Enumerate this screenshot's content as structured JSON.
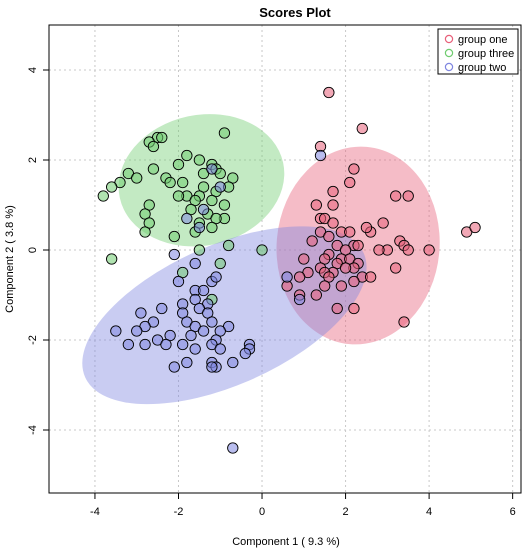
{
  "chart_data": {
    "type": "scatter",
    "title": "Scores Plot",
    "xlabel": "Component 1 ( 9.3 %)",
    "ylabel": "Component 2 ( 3.8 %)",
    "xlim": [
      -5.1,
      6.2
    ],
    "ylim": [
      -5.4,
      5.0
    ],
    "xticks": [
      -4,
      -2,
      0,
      2,
      4,
      6
    ],
    "yticks": [
      -4,
      -2,
      0,
      2,
      4
    ],
    "grid": true,
    "legend": {
      "position": "top-right"
    },
    "series": [
      {
        "name": "group one",
        "color": "#e8607a",
        "ellipse": {
          "cx": 2.3,
          "cy": 0.1,
          "rx": 1.95,
          "ry": 2.2,
          "angle": -5
        },
        "points": [
          [
            1.6,
            3.5
          ],
          [
            2.4,
            2.7
          ],
          [
            1.4,
            2.3
          ],
          [
            2.2,
            1.8
          ],
          [
            1.7,
            1.3
          ],
          [
            2.1,
            1.5
          ],
          [
            3.5,
            1.2
          ],
          [
            3.2,
            1.2
          ],
          [
            1.3,
            1.0
          ],
          [
            1.7,
            1.0
          ],
          [
            2.9,
            0.6
          ],
          [
            2.6,
            0.4
          ],
          [
            2.5,
            0.5
          ],
          [
            4.9,
            0.4
          ],
          [
            5.1,
            0.5
          ],
          [
            1.4,
            0.7
          ],
          [
            1.5,
            0.7
          ],
          [
            1.7,
            0.6
          ],
          [
            1.9,
            0.4
          ],
          [
            2.1,
            0.4
          ],
          [
            1.4,
            0.4
          ],
          [
            1.6,
            0.3
          ],
          [
            1.2,
            0.2
          ],
          [
            3.3,
            0.2
          ],
          [
            3.4,
            0.1
          ],
          [
            3.5,
            0.0
          ],
          [
            3.0,
            0.0
          ],
          [
            2.8,
            0.0
          ],
          [
            4.0,
            0.0
          ],
          [
            2.2,
            0.1
          ],
          [
            2.3,
            0.1
          ],
          [
            1.8,
            0.1
          ],
          [
            2.0,
            0.0
          ],
          [
            1.6,
            -0.1
          ],
          [
            1.5,
            -0.2
          ],
          [
            1.9,
            -0.2
          ],
          [
            2.1,
            -0.2
          ],
          [
            2.3,
            -0.3
          ],
          [
            2.2,
            -0.4
          ],
          [
            1.8,
            -0.3
          ],
          [
            1.4,
            -0.4
          ],
          [
            1.7,
            -0.5
          ],
          [
            1.5,
            -0.5
          ],
          [
            2.0,
            -0.4
          ],
          [
            2.4,
            -0.6
          ],
          [
            2.2,
            -0.7
          ],
          [
            3.2,
            -0.4
          ],
          [
            1.6,
            -0.6
          ],
          [
            1.1,
            -0.5
          ],
          [
            0.9,
            -0.6
          ],
          [
            0.9,
            -1.0
          ],
          [
            1.3,
            -1.0
          ],
          [
            1.8,
            -1.3
          ],
          [
            2.2,
            -1.3
          ],
          [
            3.4,
            -1.6
          ],
          [
            1.5,
            -0.8
          ],
          [
            0.6,
            -0.8
          ],
          [
            1.0,
            -0.2
          ],
          [
            2.6,
            -0.6
          ],
          [
            1.9,
            -0.8
          ]
        ]
      },
      {
        "name": "group three",
        "color": "#6fcc6f",
        "ellipse": {
          "cx": -1.45,
          "cy": 1.55,
          "rx": 2.0,
          "ry": 1.45,
          "angle": 12
        },
        "points": [
          [
            -2.5,
            2.5
          ],
          [
            -2.4,
            2.5
          ],
          [
            -2.7,
            2.4
          ],
          [
            -2.6,
            2.3
          ],
          [
            -0.9,
            2.6
          ],
          [
            -1.8,
            2.1
          ],
          [
            -1.5,
            2.0
          ],
          [
            -2.0,
            1.9
          ],
          [
            -1.2,
            1.9
          ],
          [
            -1.1,
            1.8
          ],
          [
            -2.6,
            1.8
          ],
          [
            -2.3,
            1.6
          ],
          [
            -0.7,
            1.6
          ],
          [
            -1.0,
            1.7
          ],
          [
            -1.4,
            1.7
          ],
          [
            -3.2,
            1.7
          ],
          [
            -3.0,
            1.6
          ],
          [
            -3.4,
            1.5
          ],
          [
            -3.6,
            1.4
          ],
          [
            -2.2,
            1.5
          ],
          [
            -1.9,
            1.5
          ],
          [
            -0.8,
            1.4
          ],
          [
            -1.4,
            1.4
          ],
          [
            -1.1,
            1.3
          ],
          [
            -1.8,
            1.2
          ],
          [
            -1.5,
            1.2
          ],
          [
            -3.8,
            1.2
          ],
          [
            -2.0,
            1.2
          ],
          [
            -1.6,
            1.1
          ],
          [
            -1.2,
            1.1
          ],
          [
            -0.9,
            1.0
          ],
          [
            -2.7,
            1.0
          ],
          [
            -1.7,
            0.9
          ],
          [
            -1.3,
            0.8
          ],
          [
            -0.9,
            0.7
          ],
          [
            -2.8,
            0.8
          ],
          [
            -1.5,
            0.6
          ],
          [
            -1.1,
            0.7
          ],
          [
            -1.2,
            0.5
          ],
          [
            -2.7,
            0.6
          ],
          [
            -2.8,
            0.4
          ],
          [
            -1.6,
            0.4
          ],
          [
            -0.8,
            0.1
          ],
          [
            0.0,
            0.0
          ],
          [
            -1.5,
            0.0
          ],
          [
            -3.6,
            -0.2
          ],
          [
            -1.9,
            -0.5
          ],
          [
            -1.0,
            -0.3
          ],
          [
            -1.2,
            -1.1
          ],
          [
            -2.1,
            0.3
          ]
        ]
      },
      {
        "name": "group two",
        "color": "#7f86e0",
        "ellipse": {
          "cx": -0.9,
          "cy": -1.45,
          "rx": 3.65,
          "ry": 1.55,
          "angle": 24
        },
        "points": [
          [
            1.4,
            2.1
          ],
          [
            -1.2,
            1.8
          ],
          [
            -1.0,
            1.4
          ],
          [
            -1.4,
            0.9
          ],
          [
            -1.5,
            0.5
          ],
          [
            -1.8,
            0.7
          ],
          [
            -2.1,
            -0.1
          ],
          [
            -1.6,
            -0.3
          ],
          [
            -1.2,
            -0.7
          ],
          [
            -1.1,
            -0.6
          ],
          [
            -2.0,
            -0.7
          ],
          [
            -1.6,
            -0.9
          ],
          [
            -1.4,
            -0.9
          ],
          [
            -1.9,
            -1.2
          ],
          [
            -1.6,
            -1.1
          ],
          [
            -1.3,
            -1.2
          ],
          [
            -1.5,
            -1.3
          ],
          [
            -1.3,
            -1.4
          ],
          [
            -2.4,
            -1.3
          ],
          [
            -1.9,
            -1.4
          ],
          [
            -2.9,
            -1.4
          ],
          [
            -1.8,
            -1.6
          ],
          [
            -1.2,
            -1.6
          ],
          [
            -1.6,
            -1.7
          ],
          [
            -2.6,
            -1.6
          ],
          [
            -2.8,
            -1.7
          ],
          [
            -0.8,
            -1.7
          ],
          [
            -1.4,
            -1.8
          ],
          [
            -1.0,
            -1.8
          ],
          [
            -3.0,
            -1.8
          ],
          [
            -2.2,
            -1.9
          ],
          [
            -1.7,
            -1.9
          ],
          [
            -1.1,
            -2.0
          ],
          [
            -1.2,
            -2.1
          ],
          [
            -2.5,
            -2.0
          ],
          [
            -3.5,
            -1.8
          ],
          [
            -1.9,
            -2.1
          ],
          [
            -2.3,
            -2.1
          ],
          [
            -1.6,
            -2.2
          ],
          [
            -1.0,
            -2.2
          ],
          [
            -2.8,
            -2.1
          ],
          [
            -0.3,
            -2.1
          ],
          [
            -0.3,
            -2.2
          ],
          [
            -0.4,
            -2.3
          ],
          [
            -3.2,
            -2.1
          ],
          [
            -1.2,
            -2.5
          ],
          [
            -1.1,
            -2.6
          ],
          [
            -1.8,
            -2.5
          ],
          [
            -0.7,
            -2.5
          ],
          [
            -2.1,
            -2.6
          ],
          [
            -1.2,
            -2.6
          ],
          [
            -0.7,
            -4.4
          ],
          [
            0.6,
            -0.6
          ],
          [
            0.9,
            -1.1
          ]
        ]
      }
    ]
  }
}
